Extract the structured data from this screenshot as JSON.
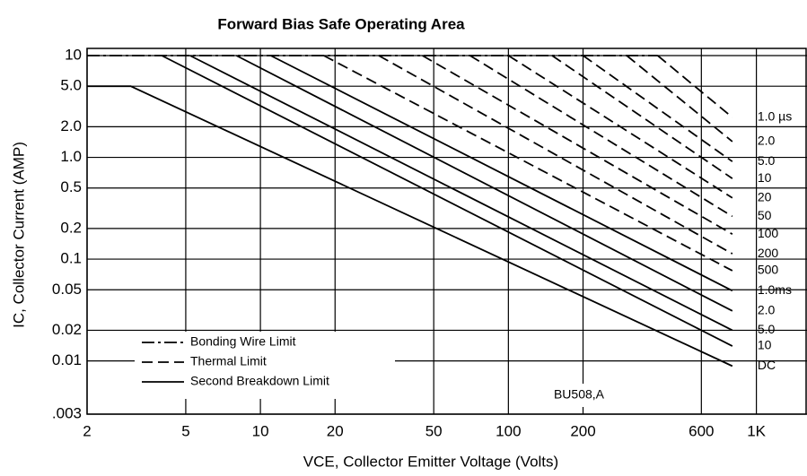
{
  "chart_data": {
    "type": "line",
    "title": "Forward Bias Safe Operating Area",
    "x_label": "VCE, Collector Emitter Voltage (Volts)",
    "y_label": "IC, Collector Current (AMP)",
    "annotation": "BU508,A",
    "log_x": true,
    "log_y": true,
    "grid": true,
    "xlim": [
      2,
      1600
    ],
    "ylim": [
      0.003,
      10
    ],
    "xticks": [
      2,
      5,
      10,
      20,
      50,
      100,
      200,
      600,
      {
        "value": 1000,
        "label": "1K"
      }
    ],
    "yticks": [
      10,
      {
        "value": 5,
        "label": "5.0"
      },
      {
        "value": 2,
        "label": "2.0"
      },
      {
        "value": 1,
        "label": "1.0"
      },
      0.5,
      0.2,
      0.1,
      0.05,
      0.02,
      0.01,
      {
        "value": 0.003,
        "label": ".003"
      }
    ],
    "legend": [
      {
        "name": "Bonding Wire Limit",
        "style": "dashdot"
      },
      {
        "name": "Thermal Limit",
        "style": "dashed"
      },
      {
        "name": "Second Breakdown Limit",
        "style": "solid"
      }
    ],
    "legend_position": "lower left",
    "color": "#000000",
    "series": [
      {
        "name": "1.0 µs",
        "style": "dashed",
        "x": [
          400,
          800
        ],
        "values": [
          10,
          2.47
        ]
      },
      {
        "name": "2.0",
        "style": "dashed",
        "x": [
          300,
          800
        ],
        "values": [
          10,
          1.43
        ]
      },
      {
        "name": "5.0",
        "style": "dashed",
        "x": [
          200,
          800
        ],
        "values": [
          10,
          0.91
        ]
      },
      {
        "name": "10",
        "style": "dashed",
        "x": [
          150,
          800
        ],
        "values": [
          10,
          0.62
        ]
      },
      {
        "name": "20",
        "style": "dashed",
        "x": [
          100,
          800
        ],
        "values": [
          10,
          0.4
        ]
      },
      {
        "name": "50",
        "style": "dashed",
        "x": [
          70,
          800
        ],
        "values": [
          10,
          0.263
        ]
      },
      {
        "name": "100",
        "style": "dashed",
        "x": [
          45,
          800
        ],
        "values": [
          10,
          0.176
        ]
      },
      {
        "name": "200",
        "style": "dashed",
        "x": [
          30,
          800
        ],
        "values": [
          10,
          0.113
        ]
      },
      {
        "name": "500",
        "style": "dashed",
        "x": [
          18,
          800
        ],
        "values": [
          10,
          0.077
        ]
      },
      {
        "name": "1.0ms",
        "style": "solid",
        "x": [
          11,
          800
        ],
        "values": [
          10,
          0.049
        ]
      },
      {
        "name": "2.0",
        "style": "solid",
        "x": [
          8,
          800
        ],
        "values": [
          10,
          0.031
        ]
      },
      {
        "name": "5.0",
        "style": "solid",
        "x": [
          5.2,
          800
        ],
        "values": [
          10,
          0.02
        ]
      },
      {
        "name": "10",
        "style": "solid",
        "x": [
          4,
          800
        ],
        "values": [
          10,
          0.014
        ]
      },
      {
        "name": "DC",
        "style": "solid",
        "x": [
          2,
          3,
          800
        ],
        "values": [
          5,
          5,
          0.0089
        ]
      },
      {
        "name": "Bonding Wire Limit",
        "style": "dashdot",
        "x": [
          2,
          400
        ],
        "values": [
          10,
          10
        ]
      }
    ]
  }
}
